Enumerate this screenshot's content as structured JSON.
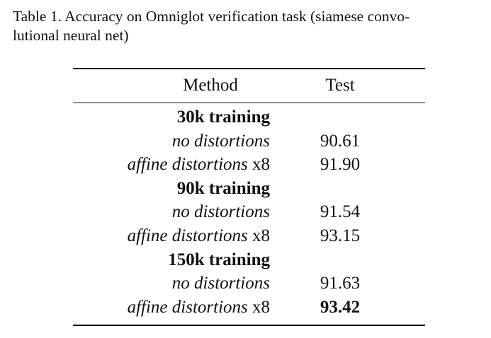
{
  "caption": {
    "line1": "Table 1. Accuracy on Omniglot verification task (siamese convo-",
    "line2": "lutional neural net)"
  },
  "table": {
    "columns": [
      "Method",
      "Test"
    ],
    "groups": [
      {
        "label": "30k training",
        "rows": [
          {
            "method": "no distortions",
            "suffix": "",
            "test": "90.61",
            "bold": false
          },
          {
            "method": "affine distortions",
            "suffix": " x8",
            "test": "91.90",
            "bold": false
          }
        ]
      },
      {
        "label": "90k training",
        "rows": [
          {
            "method": "no distortions",
            "suffix": "",
            "test": "91.54",
            "bold": false
          },
          {
            "method": "affine distortions",
            "suffix": " x8",
            "test": "93.15",
            "bold": false
          }
        ]
      },
      {
        "label": "150k training",
        "rows": [
          {
            "method": "no distortions",
            "suffix": "",
            "test": "91.63",
            "bold": false
          },
          {
            "method": "affine distortions",
            "suffix": " x8",
            "test": "93.42",
            "bold": true
          }
        ]
      }
    ]
  }
}
